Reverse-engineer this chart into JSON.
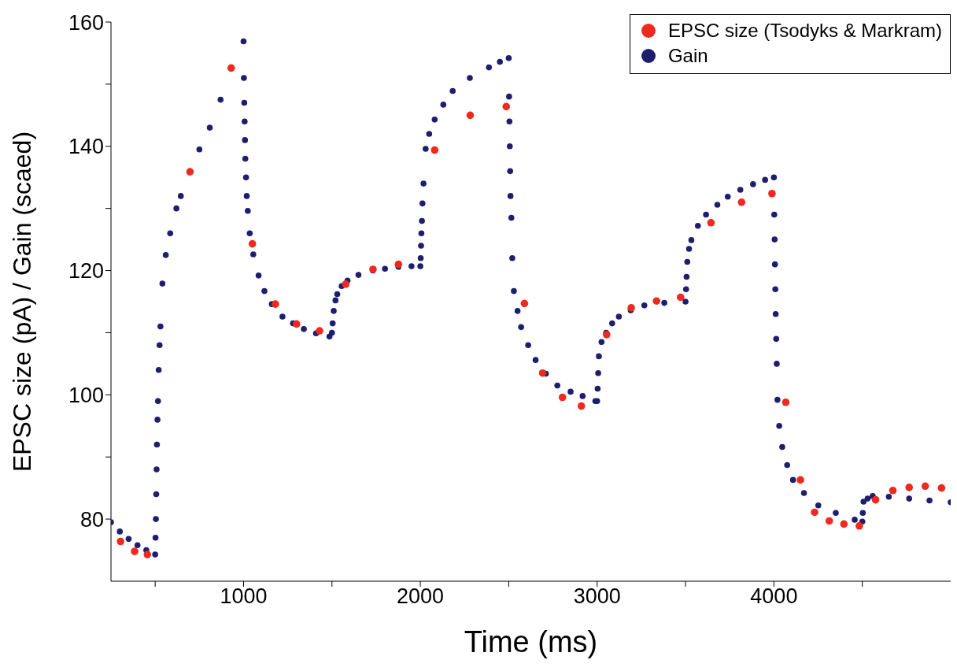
{
  "chart_data": {
    "type": "scatter",
    "xlabel": "Time (ms)",
    "ylabel": "EPSC size (pA) / Gain (scaed)",
    "xlim": [
      250,
      5000
    ],
    "xticks": [
      {
        "value": 500,
        "label": null
      },
      1000,
      {
        "value": 1500,
        "label": null
      },
      2000,
      {
        "value": 2500,
        "label": null
      },
      3000,
      {
        "value": 3500,
        "label": null
      },
      4000,
      {
        "value": 4500,
        "label": null
      }
    ],
    "ylim": [
      70,
      160
    ],
    "yticks": [
      80,
      {
        "value": 90,
        "label": null
      },
      100,
      {
        "value": 110,
        "label": null
      },
      120,
      {
        "value": 130,
        "label": null
      },
      140,
      {
        "value": 150,
        "label": null
      },
      160
    ],
    "legend": "top right",
    "marker": "circle",
    "series": [
      {
        "name": "Gain",
        "color": "#1c1f6e",
        "x": [
          250,
          300,
          350,
          400,
          450,
          500,
          502,
          504,
          506,
          508,
          510,
          513,
          516,
          520,
          525,
          530,
          541,
          560,
          585,
          620,
          645,
          750,
          809,
          870,
          1000,
          1002,
          1004,
          1006,
          1008,
          1010,
          1014,
          1018,
          1024,
          1035,
          1055,
          1085,
          1118,
          1160,
          1220,
          1280,
          1341,
          1410,
          1486,
          1500,
          1504,
          1510,
          1520,
          1530,
          1555,
          1588,
          1650,
          1732,
          1800,
          1876,
          1950,
          2000,
          2002,
          2004,
          2006,
          2009,
          2012,
          2018,
          2030,
          2050,
          2081,
          2130,
          2183,
          2280,
          2388,
          2450,
          2500,
          2502,
          2504,
          2506,
          2508,
          2510,
          2515,
          2520,
          2529,
          2550,
          2570,
          2610,
          2652,
          2710,
          2775,
          2850,
          2918,
          2990,
          3000,
          3003,
          3006,
          3010,
          3025,
          3051,
          3085,
          3123,
          3190,
          3267,
          3380,
          3500,
          3503,
          3506,
          3510,
          3520,
          3533,
          3570,
          3616,
          3680,
          3739,
          3810,
          3882,
          3950,
          4000,
          4002,
          4004,
          4006,
          4008,
          4010,
          4013,
          4016,
          4020,
          4030,
          4047,
          4075,
          4108,
          4170,
          4251,
          4350,
          4457,
          4500,
          4503,
          4507,
          4530,
          4559,
          4650,
          4765,
          4880,
          5000
        ],
        "values": [
          79.5,
          78.0,
          76.8,
          75.8,
          75.0,
          74.3,
          77,
          80,
          84,
          88,
          92,
          96,
          99,
          104,
          108,
          111,
          117.9,
          122.5,
          126,
          130,
          132,
          139.5,
          143,
          147.5,
          156.9,
          151,
          147,
          144,
          141,
          138,
          135,
          132,
          129.6,
          126,
          122.6,
          119.2,
          116.7,
          114.6,
          112.6,
          111.5,
          110.6,
          109.9,
          109.4,
          110,
          111.5,
          113.5,
          115.2,
          116.2,
          117.5,
          118.4,
          119.3,
          120.0,
          120.3,
          120.6,
          120.7,
          120.7,
          122,
          124,
          126,
          128,
          130.8,
          134,
          139.6,
          142,
          144.3,
          146.7,
          148.9,
          151,
          152.7,
          153.6,
          154.2,
          148,
          144,
          140,
          136,
          132,
          128.5,
          122,
          116.7,
          113.5,
          110.9,
          108,
          105.6,
          103.4,
          101.5,
          100.5,
          99.8,
          99.0,
          99.0,
          101,
          103.5,
          106.2,
          108.5,
          110.0,
          111.5,
          112.6,
          113.6,
          114.4,
          114.8,
          115.0,
          117,
          119,
          121.4,
          123.5,
          124.9,
          127.2,
          129.0,
          130.6,
          131.9,
          133.0,
          133.9,
          134.6,
          135.0,
          129,
          125,
          121,
          117,
          113,
          109,
          105,
          99.2,
          95,
          91.6,
          88.7,
          86.3,
          84.2,
          82.2,
          81.0,
          79.9,
          79.6,
          81,
          82.8,
          83.3,
          83.7,
          83.6,
          83.3,
          83.0,
          82.7
        ]
      },
      {
        "name": "EPSC size (Tsodyks & Markram)",
        "color": "#ee2a1e",
        "x": [
          304,
          384,
          456,
          697,
          930,
          1050,
          1180,
          1300,
          1430,
          1578,
          1732,
          1876,
          2081,
          2282,
          2486,
          2589,
          2692,
          2804,
          2911,
          3054,
          3193,
          3336,
          3472,
          3644,
          3817,
          3989,
          4067,
          4150,
          4230,
          4313,
          4396,
          4483,
          4575,
          4673,
          4765,
          4856,
          4948
        ],
        "values": [
          76.4,
          74.8,
          74.3,
          135.9,
          152.6,
          124.3,
          114.6,
          111.4,
          110.3,
          117.8,
          120.2,
          121.0,
          139.4,
          145.0,
          146.4,
          114.7,
          103.5,
          99.6,
          98.2,
          109.7,
          114.0,
          115.1,
          115.7,
          127.7,
          131.0,
          132.4,
          98.8,
          86.3,
          81.1,
          79.7,
          79.2,
          78.9,
          83.1,
          84.6,
          85.1,
          85.3,
          85.0
        ]
      }
    ]
  }
}
